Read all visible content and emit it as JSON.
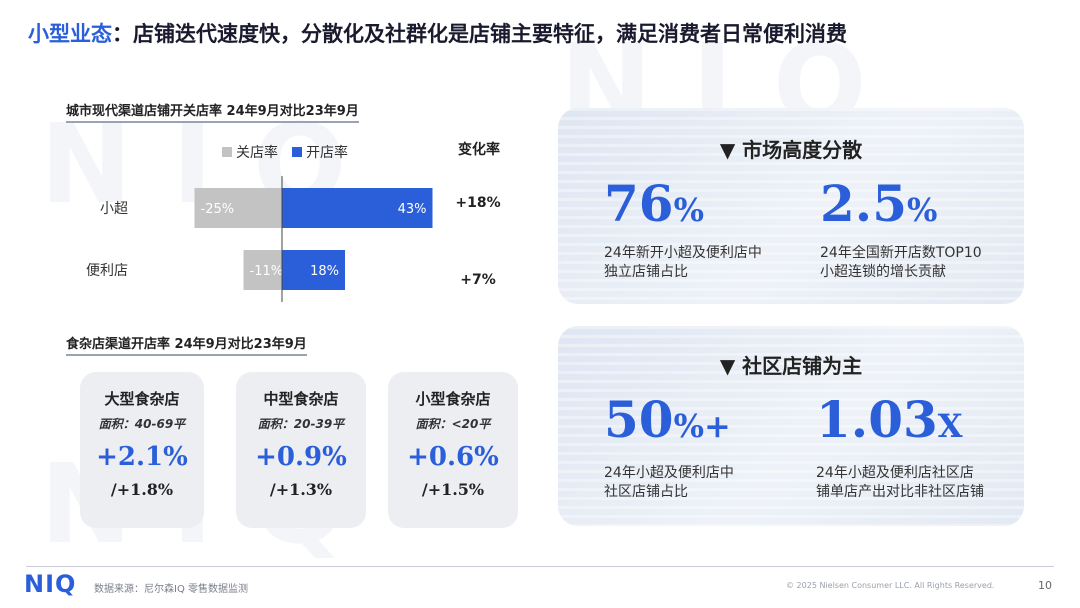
{
  "title": {
    "accent": "小型业态",
    "rest": "：店铺迭代速度快，分散化及社群化是店铺主要特征，满足消费者日常便利消费"
  },
  "watermark_text": "NIQ",
  "colors": {
    "accent": "#2b5fd9",
    "close_bar": "#c3c3c3",
    "open_bar": "#2b5fd9",
    "card_bg": "#eceef2"
  },
  "section1": {
    "label": "城市现代渠道店铺开关店率 24年9月对比23年9月"
  },
  "legend": {
    "close_label": "关店率",
    "open_label": "开店率"
  },
  "change_header": "变化率",
  "chart_data": {
    "type": "bar",
    "orientation": "horizontal-diverging",
    "categories": [
      "小超",
      "便利店"
    ],
    "series": [
      {
        "name": "关店率",
        "values": [
          -25,
          -11
        ],
        "labels": [
          "-25%",
          "-11%"
        ],
        "color": "#c3c3c3"
      },
      {
        "name": "开店率",
        "values": [
          43,
          18
        ],
        "labels": [
          "43%",
          "18%"
        ],
        "color": "#2b5fd9"
      }
    ],
    "change_rate": [
      "+18%",
      "+7%"
    ],
    "xlim": [
      -30,
      45
    ],
    "grid": false
  },
  "section2": {
    "label": "食杂店渠道开店率 24年9月对比23年9月"
  },
  "cards": [
    {
      "name": "大型食杂店",
      "area": "面积：40-69平",
      "value": "+2.1%",
      "prev": "/+1.8%"
    },
    {
      "name": "中型食杂店",
      "area": "面积：20-39平",
      "value": "+0.9%",
      "prev": "/+1.3%"
    },
    {
      "name": "小型食杂店",
      "area": "面积：<20平",
      "value": "+0.6%",
      "prev": "/+1.5%"
    }
  ],
  "panel1": {
    "heading": "▼ 市场高度分散",
    "stat1": {
      "num": "76",
      "unit": "%",
      "desc_line1": "24年新开小超及便利店中",
      "desc_line2": "独立店铺占比"
    },
    "stat2": {
      "num": "2.5",
      "unit": "%",
      "desc_line1": "24年全国新开店数TOP10",
      "desc_line2": "小超连锁的增长贡献"
    }
  },
  "panel2": {
    "heading": "▼ 社区店铺为主",
    "stat1": {
      "num": "50",
      "unit": "%+",
      "desc_line1": "24年小超及便利店中",
      "desc_line2": "社区店铺占比"
    },
    "stat2": {
      "num": "1.03",
      "unit": "X",
      "desc_line1": "24年小超及便利店社区店",
      "desc_line2": "铺单店产出对比非社区店铺"
    }
  },
  "footer": {
    "logo": "NIQ",
    "source": "数据来源：尼尔森IQ 零售数据监测",
    "copyright": "© 2025 Nielsen Consumer LLC. All Rights Reserved.",
    "page": "10"
  }
}
